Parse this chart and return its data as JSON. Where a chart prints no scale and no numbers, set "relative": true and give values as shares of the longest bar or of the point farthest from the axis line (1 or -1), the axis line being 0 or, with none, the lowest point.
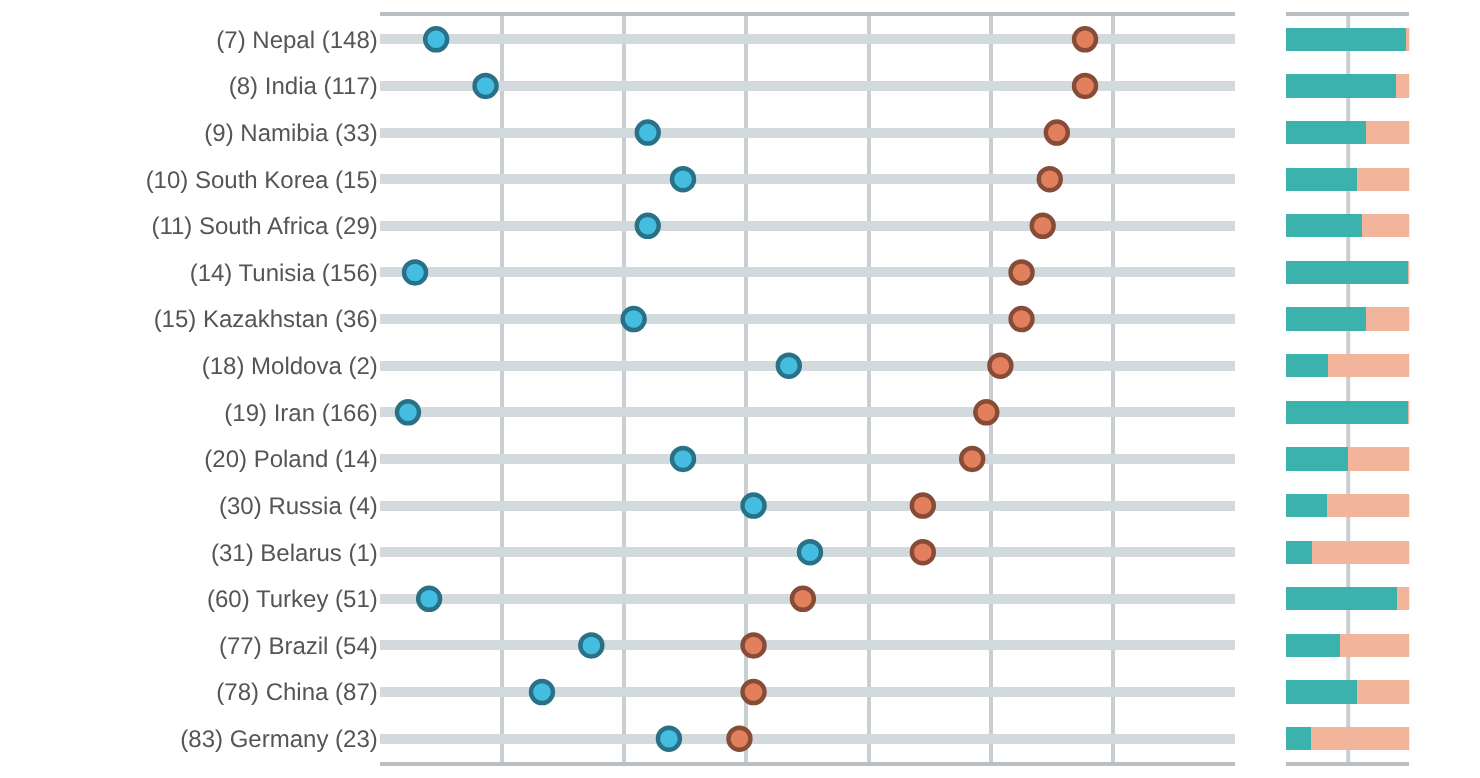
{
  "chart_data": [
    {
      "type": "scatter",
      "orientation": "horizontal",
      "relative": true,
      "marker": "circle",
      "grid": true,
      "tick_labels": "y",
      "categories": [
        "(7) Nepal (148)",
        "(8) India (117)",
        "(9) Namibia (33)",
        "(10) South Korea (15)",
        "(11) South Africa (29)",
        "(14) Tunisia (156)",
        "(15) Kazakhstan (36)",
        "(18) Moldova (2)",
        "(19) Iran (166)",
        "(20) Poland (14)",
        "(30) Russia (4)",
        "(31) Belarus (1)",
        "(60) Turkey (51)",
        "(77) Brazil (54)",
        "(78) China (87)",
        "(83) Germany (23)"
      ],
      "series": [
        {
          "color": "#45bde0",
          "values": [
            0.08,
            0.15,
            0.38,
            0.43,
            0.38,
            0.05,
            0.36,
            0.58,
            0.04,
            0.43,
            0.53,
            0.61,
            0.07,
            0.3,
            0.23,
            0.41
          ]
        },
        {
          "color": "#e2805e",
          "values": [
            1,
            1.0,
            0.96,
            0.95,
            0.94,
            0.91,
            0.91,
            0.88,
            0.86,
            0.84,
            0.77,
            0.77,
            0.6,
            0.53,
            0.53,
            0.51
          ]
        }
      ]
    },
    {
      "type": "bar",
      "orientation": "horizontal",
      "stacked": true,
      "relative": true,
      "grid": "y",
      "tick_labels": false,
      "ref_lines": [
        {
          "axis": "x",
          "value": 0.5,
          "color": "#c9ced1"
        }
      ],
      "categories": [
        null,
        null,
        null,
        null,
        null,
        null,
        null,
        null,
        null,
        null,
        null,
        null,
        null,
        null,
        null,
        null
      ],
      "series": [
        {
          "color": "#3bb3ac",
          "values": [
            0.96,
            0.88,
            0.64,
            0.57,
            0.61,
            0.98,
            0.64,
            0.34,
            0.99,
            0.5,
            0.33,
            0.21,
            0.89,
            0.43,
            0.57,
            0.2
          ]
        },
        {
          "color": "#f2b49b",
          "values": [
            0.04,
            0.12,
            0.36,
            0.43,
            0.39,
            0.02,
            0.36,
            0.66,
            0.01,
            0.5,
            0.67,
            0.79,
            0.11,
            0.57,
            0.43,
            0.8
          ]
        }
      ]
    }
  ]
}
